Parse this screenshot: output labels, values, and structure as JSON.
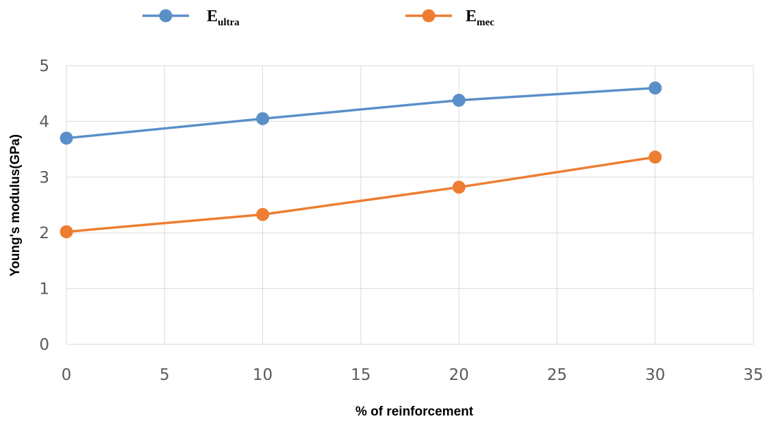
{
  "chart_data": {
    "type": "line",
    "title": "",
    "xlabel": "% of reinforcement",
    "ylabel": "Young's modulus(GPa)",
    "xlim": [
      0,
      35
    ],
    "ylim": [
      0,
      5
    ],
    "xticks": [
      0,
      5,
      10,
      15,
      20,
      25,
      30,
      35
    ],
    "yticks": [
      0,
      1,
      2,
      3,
      4,
      5
    ],
    "grid": true,
    "legend_position": "top",
    "x": [
      0,
      10,
      20,
      30
    ],
    "series": [
      {
        "name_main": "E",
        "name_sub": "ultra",
        "color": "#5b8fc8",
        "values": [
          3.7,
          4.05,
          4.38,
          4.6
        ]
      },
      {
        "name_main": "E",
        "name_sub": "mec",
        "color": "#ed7d31",
        "values": [
          2.02,
          2.33,
          2.82,
          3.36
        ]
      }
    ]
  }
}
